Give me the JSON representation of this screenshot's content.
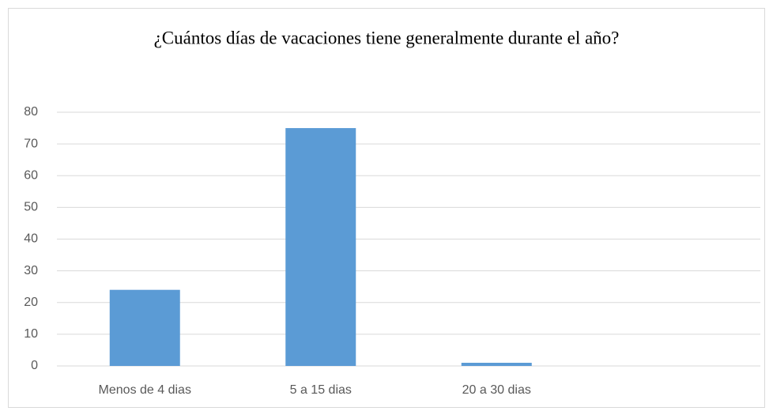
{
  "chart_data": {
    "type": "bar",
    "title": "¿Cuántos días de vacaciones tiene generalmente durante el año?",
    "categories": [
      "Menos de 4 dias",
      "5 a 15 dias",
      "20 a 30 dias",
      null
    ],
    "values": [
      24,
      75,
      1,
      null
    ],
    "color": "#5b9bd5",
    "ylim": [
      0,
      80
    ],
    "yticks": [
      0,
      10,
      20,
      30,
      40,
      50,
      60,
      70,
      80
    ],
    "grid": true
  }
}
